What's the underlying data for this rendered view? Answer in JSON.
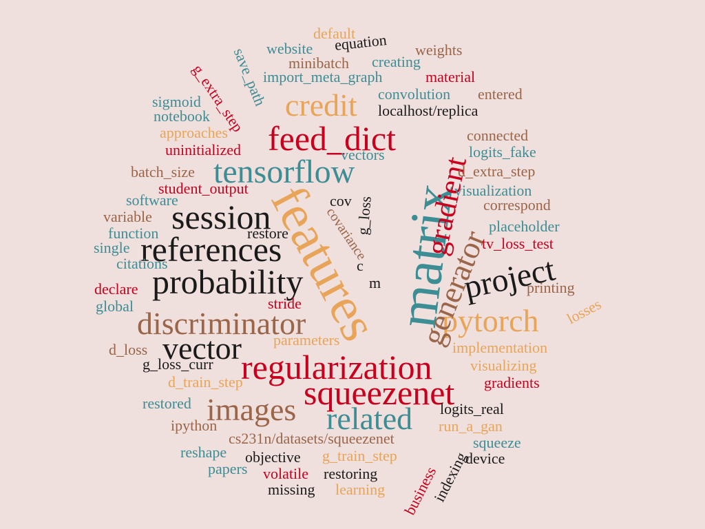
{
  "palette": {
    "background": "#efdfdd",
    "red": "#c8001e",
    "teal": "#3d8d94",
    "orange": "#e8a55a",
    "brown": "#9a6548",
    "black": "#1a1a1a"
  },
  "words": [
    {
      "text": "features",
      "color": "orange"
    },
    {
      "text": "matrix",
      "color": "teal"
    },
    {
      "text": "regularization",
      "color": "red"
    },
    {
      "text": "probability",
      "color": "black"
    },
    {
      "text": "references",
      "color": "black"
    },
    {
      "text": "discriminator",
      "color": "brown"
    },
    {
      "text": "tensorflow",
      "color": "teal"
    },
    {
      "text": "squeezenet",
      "color": "red"
    },
    {
      "text": "feed_dict",
      "color": "red"
    },
    {
      "text": "session",
      "color": "black"
    },
    {
      "text": "vector",
      "color": "black"
    },
    {
      "text": "images",
      "color": "brown"
    },
    {
      "text": "related",
      "color": "teal"
    },
    {
      "text": "project",
      "color": "black"
    },
    {
      "text": "pytorch",
      "color": "orange"
    },
    {
      "text": "generator",
      "color": "brown"
    },
    {
      "text": "gradient",
      "color": "red"
    },
    {
      "text": "credit",
      "color": "orange"
    },
    {
      "text": "website",
      "color": "teal"
    },
    {
      "text": "equation",
      "color": "black"
    },
    {
      "text": "default",
      "color": "orange"
    },
    {
      "text": "weights",
      "color": "brown"
    },
    {
      "text": "minibatch",
      "color": "brown"
    },
    {
      "text": "creating",
      "color": "teal"
    },
    {
      "text": "import_meta_graph",
      "color": "teal"
    },
    {
      "text": "material",
      "color": "red"
    },
    {
      "text": "save_path",
      "color": "teal"
    },
    {
      "text": "g_extra_step",
      "color": "red"
    },
    {
      "text": "sigmoid",
      "color": "teal"
    },
    {
      "text": "notebook",
      "color": "teal"
    },
    {
      "text": "convolution",
      "color": "teal"
    },
    {
      "text": "entered",
      "color": "brown"
    },
    {
      "text": "localhost/replica",
      "color": "black"
    },
    {
      "text": "approaches",
      "color": "orange"
    },
    {
      "text": "uninitialized",
      "color": "red"
    },
    {
      "text": "connected",
      "color": "brown"
    },
    {
      "text": "logits_fake",
      "color": "teal"
    },
    {
      "text": "vectors",
      "color": "teal"
    },
    {
      "text": "batch_size",
      "color": "brown"
    },
    {
      "text": "d_extra_step",
      "color": "brown"
    },
    {
      "text": "student_output",
      "color": "red"
    },
    {
      "text": "visualization",
      "color": "teal"
    },
    {
      "text": "software",
      "color": "teal"
    },
    {
      "text": "correspond",
      "color": "brown"
    },
    {
      "text": "cov",
      "color": "black"
    },
    {
      "text": "g_loss",
      "color": "black"
    },
    {
      "text": "variable",
      "color": "brown"
    },
    {
      "text": "placeholder",
      "color": "teal"
    },
    {
      "text": "function",
      "color": "teal"
    },
    {
      "text": "restore",
      "color": "black"
    },
    {
      "text": "covariance",
      "color": "brown"
    },
    {
      "text": "tv_loss_test",
      "color": "red"
    },
    {
      "text": "single",
      "color": "teal"
    },
    {
      "text": "c",
      "color": "black"
    },
    {
      "text": "citations",
      "color": "teal"
    },
    {
      "text": "printing",
      "color": "brown"
    },
    {
      "text": "declare",
      "color": "red"
    },
    {
      "text": "m",
      "color": "black"
    },
    {
      "text": "global",
      "color": "teal"
    },
    {
      "text": "stride",
      "color": "red"
    },
    {
      "text": "losses",
      "color": "orange"
    },
    {
      "text": "parameters",
      "color": "orange"
    },
    {
      "text": "d_loss",
      "color": "brown"
    },
    {
      "text": "implementation",
      "color": "orange"
    },
    {
      "text": "g_loss_curr",
      "color": "black"
    },
    {
      "text": "visualizing",
      "color": "orange"
    },
    {
      "text": "d_train_step",
      "color": "orange"
    },
    {
      "text": "gradients",
      "color": "red"
    },
    {
      "text": "restored",
      "color": "teal"
    },
    {
      "text": "logits_real",
      "color": "black"
    },
    {
      "text": "ipython",
      "color": "brown"
    },
    {
      "text": "run_a_gan",
      "color": "orange"
    },
    {
      "text": "cs231n/datasets/squeezenet",
      "color": "brown"
    },
    {
      "text": "squeeze",
      "color": "teal"
    },
    {
      "text": "reshape",
      "color": "teal"
    },
    {
      "text": "objective",
      "color": "black"
    },
    {
      "text": "g_train_step",
      "color": "orange"
    },
    {
      "text": "device",
      "color": "black"
    },
    {
      "text": "papers",
      "color": "teal"
    },
    {
      "text": "volatile",
      "color": "red"
    },
    {
      "text": "restoring",
      "color": "black"
    },
    {
      "text": "business",
      "color": "red"
    },
    {
      "text": "indexing",
      "color": "black"
    },
    {
      "text": "missing",
      "color": "black"
    },
    {
      "text": "learning",
      "color": "orange"
    }
  ]
}
